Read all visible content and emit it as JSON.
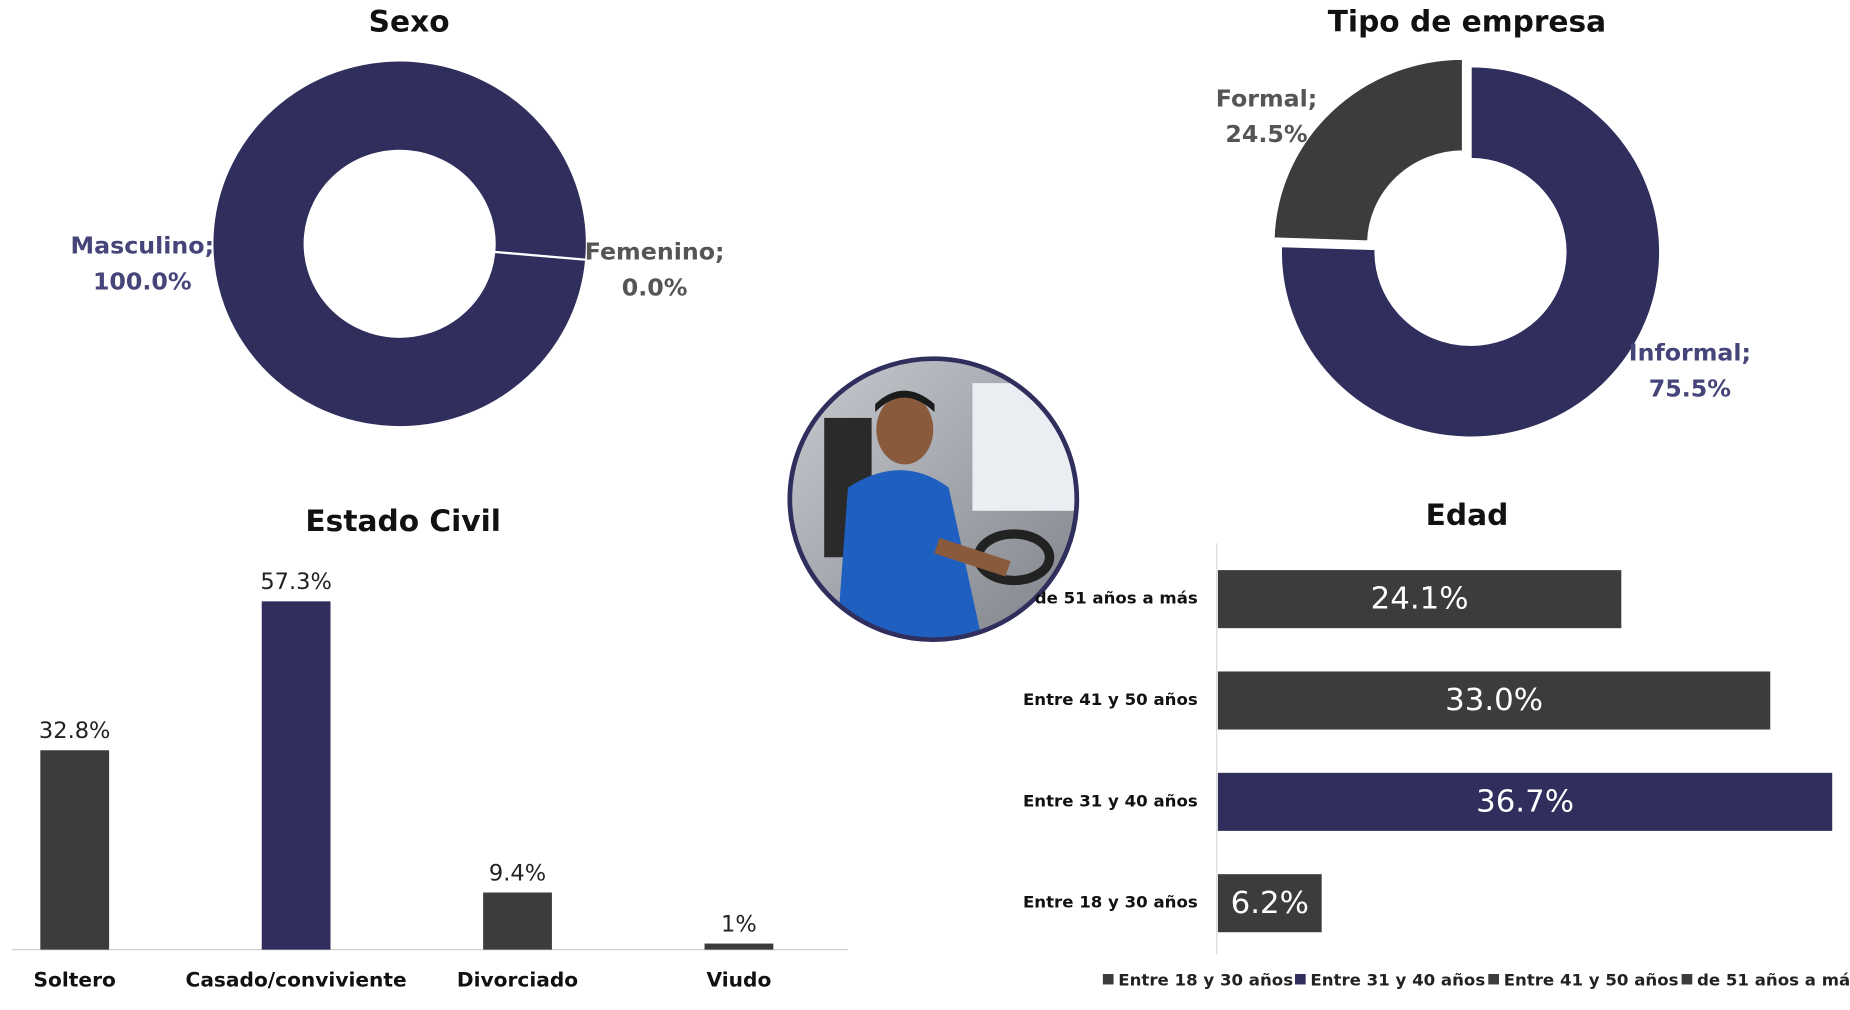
{
  "chart_data": [
    {
      "type": "donut",
      "title": "Sexo",
      "categories": [
        "Masculino;",
        "Femenino;"
      ],
      "values": [
        100.0,
        0.0
      ],
      "value_labels": [
        "100.0%",
        "0.0%"
      ],
      "colors": [
        "#2f2e5c",
        "#3c3c3c"
      ]
    },
    {
      "type": "donut",
      "title": "Tipo de empresa",
      "categories": [
        "Informal;",
        "Formal;"
      ],
      "values": [
        75.5,
        24.5
      ],
      "value_labels": [
        "75.5%",
        "24.5%"
      ],
      "colors": [
        "#2f2e5c",
        "#3c3c3c"
      ]
    },
    {
      "type": "bar",
      "title": "Estado Civil",
      "categories": [
        "Soltero",
        "Casado/conviviente",
        "Divorciado",
        "Viudo"
      ],
      "values": [
        32.8,
        57.3,
        9.4,
        1
      ],
      "value_labels": [
        "32.8%",
        "57.3%",
        "9.4%",
        "1%"
      ],
      "colors": [
        "#3c3c3c",
        "#2f2e5c",
        "#3c3c3c",
        "#3c3c3c"
      ]
    },
    {
      "type": "hbar",
      "title": "Edad",
      "categories": [
        "Entre 18 y 30 años",
        "Entre 31 y 40 años",
        "Entre 41 y 50 años",
        "de 51 años a más"
      ],
      "values": [
        6.2,
        36.7,
        33.0,
        24.1
      ],
      "value_labels": [
        "6.2%",
        "36.7%",
        "33.0%",
        "24.1%"
      ],
      "colors": [
        "#3c3c3c",
        "#2f2e5c",
        "#3c3c3c",
        "#3c3c3c"
      ],
      "legend": "bottom"
    }
  ]
}
